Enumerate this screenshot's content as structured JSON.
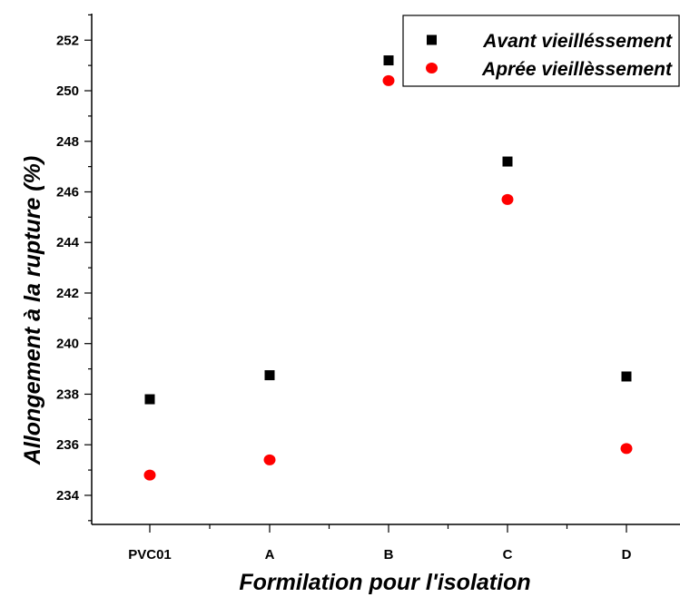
{
  "chart_data": {
    "type": "scatter",
    "categories": [
      "PVC01",
      "A",
      "B",
      "C",
      "D"
    ],
    "series": [
      {
        "name": "Avant vieilléssement",
        "marker": "square",
        "color": "#000000",
        "values": [
          237.8,
          238.75,
          251.2,
          247.2,
          238.7
        ]
      },
      {
        "name": "Aprée vieillèssement",
        "marker": "circle",
        "color": "#ff0000",
        "values": [
          234.8,
          235.4,
          250.4,
          245.7,
          235.85
        ]
      }
    ],
    "xlabel": "Formilation pour l'isolation",
    "ylabel": "Allongement à la rupture  (%)",
    "ylim": [
      232.85,
      253.05
    ],
    "yticks": [
      234,
      236,
      238,
      240,
      242,
      244,
      246,
      248,
      250,
      252
    ],
    "grid": false,
    "legend_position": "top-right"
  }
}
